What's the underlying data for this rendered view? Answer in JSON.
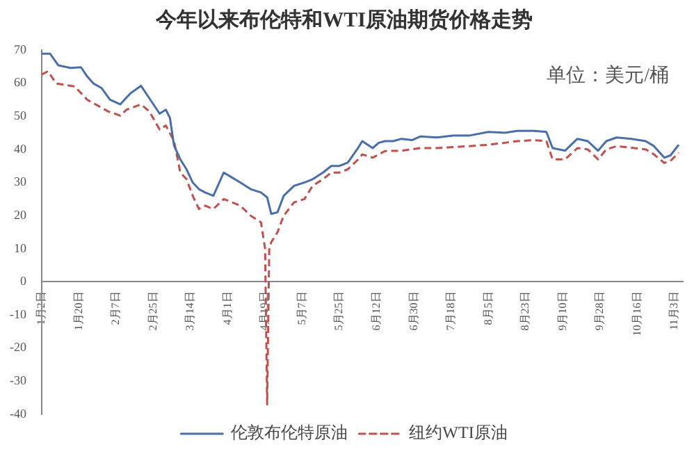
{
  "chart_data": {
    "type": "line",
    "title": "今年以来布伦特和WTI原油期货价格走势",
    "annotations": [
      "单位：美元/桶"
    ],
    "xlim": [
      "--01-02",
      "--11-07"
    ],
    "xticks": [
      {
        "value": "--01-02",
        "label": "1月2日"
      },
      {
        "value": "--01-20",
        "label": "1月20日"
      },
      {
        "value": "--02-07",
        "label": "2月7日"
      },
      {
        "value": "--02-25",
        "label": "2月25日"
      },
      {
        "value": "--03-14",
        "label": "3月14日"
      },
      {
        "value": "--04-01",
        "label": "4月1日"
      },
      {
        "value": "--04-19",
        "label": "4月19日"
      },
      {
        "value": "--05-07",
        "label": "5月7日"
      },
      {
        "value": "--05-25",
        "label": "5月25日"
      },
      {
        "value": "--06-12",
        "label": "6月12日"
      },
      {
        "value": "--06-30",
        "label": "6月30日"
      },
      {
        "value": "--07-18",
        "label": "7月18日"
      },
      {
        "value": "--08-05",
        "label": "8月5日"
      },
      {
        "value": "--08-23",
        "label": "8月23日"
      },
      {
        "value": "--09-10",
        "label": "9月10日"
      },
      {
        "value": "--09-28",
        "label": "9月28日"
      },
      {
        "value": "--10-16",
        "label": "10月16日"
      },
      {
        "value": "--11-03",
        "label": "11月3日"
      }
    ],
    "ylim": [
      -40,
      70
    ],
    "yticks": [
      -40,
      -30,
      -20,
      -10,
      0,
      10,
      20,
      30,
      40,
      50,
      60,
      70
    ],
    "grid": false,
    "legend": "bottom",
    "marker": "none",
    "series": [
      {
        "name": "伦敦布伦特原油",
        "color": "#4a6ea8",
        "line_style": "solid",
        "x": [
          "--01-02",
          "--01-06",
          "--01-10",
          "--01-16",
          "--01-21",
          "--01-24",
          "--01-27",
          "--01-31",
          "--02-04",
          "--02-09",
          "--02-11",
          "--02-14",
          "--02-19",
          "--02-22",
          "--02-28",
          "--03-02",
          "--03-04",
          "--03-06",
          "--03-09",
          "--03-12",
          "--03-15",
          "--03-18",
          "--03-21",
          "--03-25",
          "--03-30",
          "--04-03",
          "--04-07",
          "--04-12",
          "--04-17",
          "--04-20",
          "--04-22",
          "--04-25",
          "--04-28",
          "--05-03",
          "--05-08",
          "--05-12",
          "--05-17",
          "--05-21",
          "--05-25",
          "--05-29",
          "--06-03",
          "--06-05",
          "--06-10",
          "--06-13",
          "--06-16",
          "--06-20",
          "--06-24",
          "--06-29",
          "--07-03",
          "--07-11",
          "--07-19",
          "--07-27",
          "--08-05",
          "--08-13",
          "--08-19",
          "--08-27",
          "--09-02",
          "--09-05",
          "--09-11",
          "--09-17",
          "--09-22",
          "--09-27",
          "--10-01",
          "--10-06",
          "--10-13",
          "--10-20",
          "--10-24",
          "--10-29",
          "--11-01",
          "--11-05"
        ],
        "values": [
          68.9,
          68.9,
          65.4,
          64.6,
          64.8,
          62,
          59.9,
          58.5,
          55,
          53.6,
          55,
          57,
          59.2,
          56.4,
          50.8,
          52,
          49.5,
          41.1,
          37,
          34,
          30,
          28,
          27,
          26,
          33,
          31.5,
          30,
          28,
          27,
          25.5,
          20.5,
          21,
          26,
          29,
          30,
          31,
          33,
          35,
          35,
          36,
          40.5,
          42.5,
          40.4,
          42,
          42.5,
          42.5,
          43.2,
          42.8,
          43.9,
          43.6,
          44.2,
          44.2,
          45.3,
          45,
          45.6,
          45.6,
          45.3,
          40.4,
          39.6,
          43.2,
          42.5,
          39.6,
          42.5,
          43.6,
          43.2,
          42.5,
          41,
          37.5,
          38.2,
          41.4
        ]
      },
      {
        "name": "纽约WTI原油",
        "color": "#c0504d",
        "line_style": "dashed",
        "x": [
          "--01-02",
          "--01-05",
          "--01-09",
          "--01-18",
          "--01-24",
          "--02-03",
          "--02-09",
          "--02-12",
          "--02-19",
          "--02-23",
          "--02-28",
          "--03-02",
          "--03-06",
          "--03-09",
          "--03-12",
          "--03-15",
          "--03-18",
          "--03-21",
          "--03-25",
          "--03-30",
          "--04-03",
          "--04-07",
          "--04-12",
          "--04-17",
          "--04-19",
          "--04-20",
          "--04-21",
          "--04-22",
          "--04-25",
          "--04-28",
          "--05-03",
          "--05-08",
          "--05-12",
          "--05-17",
          "--05-21",
          "--05-25",
          "--05-29",
          "--06-03",
          "--06-05",
          "--06-10",
          "--06-16",
          "--06-24",
          "--07-03",
          "--07-11",
          "--07-27",
          "--08-05",
          "--08-13",
          "--08-19",
          "--08-27",
          "--09-02",
          "--09-05",
          "--09-11",
          "--09-17",
          "--09-22",
          "--09-27",
          "--10-01",
          "--10-06",
          "--10-13",
          "--10-20",
          "--10-24",
          "--10-29",
          "--11-01",
          "--11-05"
        ],
        "values": [
          62.6,
          63.6,
          59.9,
          59,
          55,
          51.5,
          50.2,
          52,
          53.6,
          51.5,
          46,
          47.2,
          42.5,
          33,
          31,
          26,
          22,
          23,
          22,
          25,
          24,
          23,
          20,
          18,
          10,
          -37,
          10,
          12,
          15,
          20,
          24,
          25,
          29,
          31,
          33,
          33,
          34,
          37,
          38.5,
          37.5,
          39.5,
          39.6,
          40.4,
          40.4,
          41,
          41.4,
          42,
          42.5,
          42.8,
          42.5,
          37,
          37,
          40.4,
          40,
          37,
          40,
          41,
          40.5,
          40,
          38.5,
          35.9,
          36.5,
          39
        ]
      }
    ]
  }
}
